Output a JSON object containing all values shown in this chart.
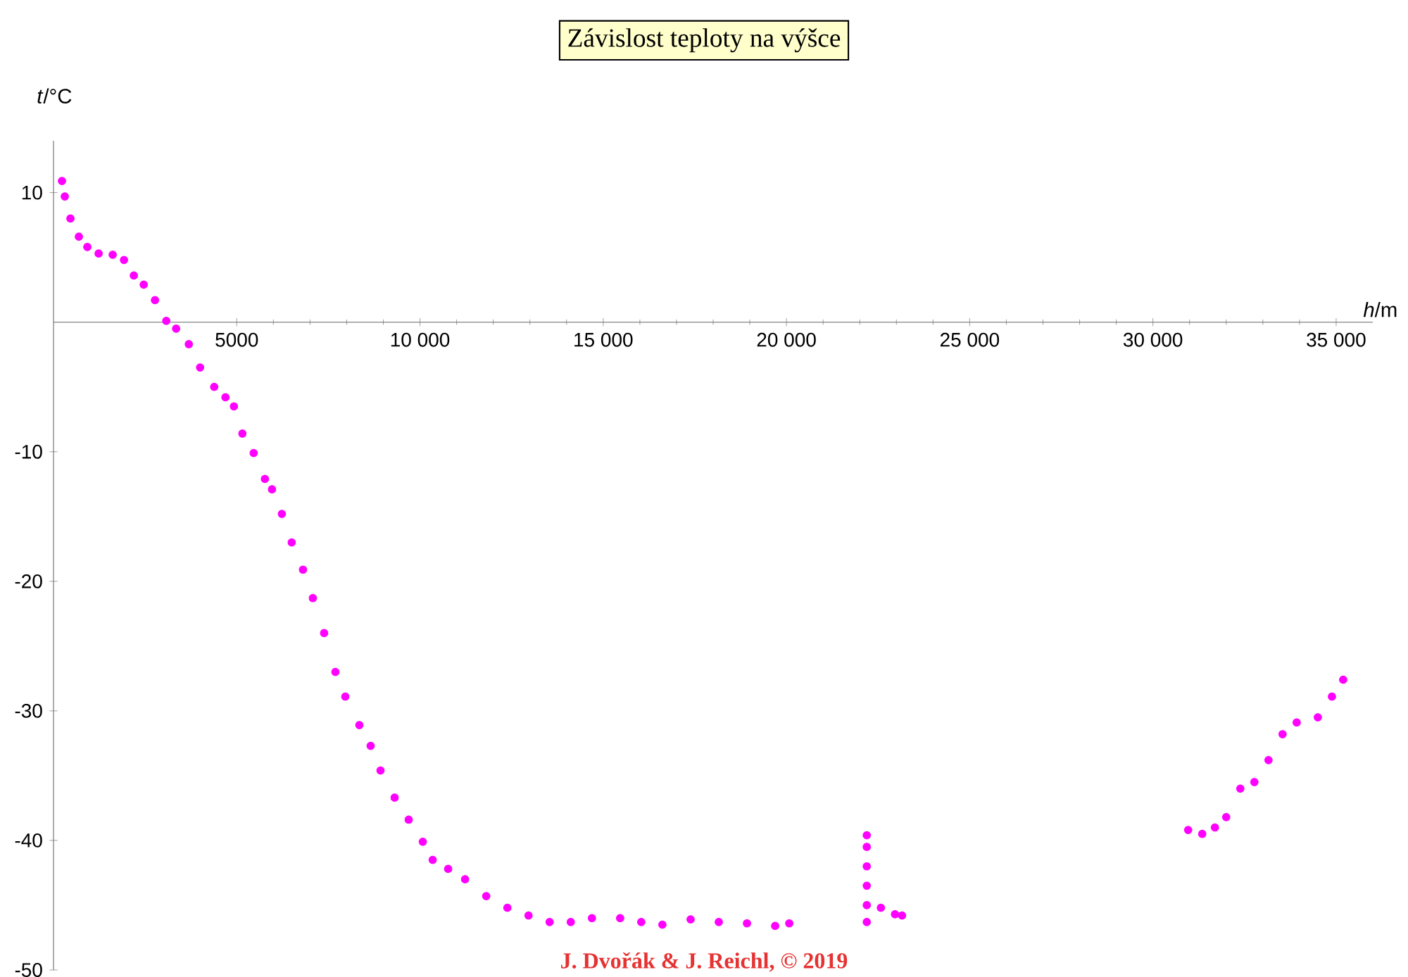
{
  "chart_data": {
    "type": "scatter",
    "title": "Závislost teploty na výšce",
    "xlabel": "*h*/m",
    "ylabel": "*t*/°C",
    "annotations": [
      "J. Dvořák & J. Reichl, © 2019"
    ],
    "x": [
      231,
      308,
      462,
      692,
      923,
      1231,
      1615,
      1923,
      2192,
      2462,
      2769,
      3077,
      3346,
      3692,
      4000,
      4385,
      4692,
      4923,
      5154,
      5462,
      5769,
      5962,
      6231,
      6500,
      6808,
      7077,
      7385,
      7692,
      7962,
      8346,
      8654,
      8923,
      9308,
      9692,
      10077,
      10346,
      10769,
      11231,
      11808,
      12385,
      12962,
      13538,
      14115,
      14692,
      15462,
      16038,
      16615,
      17385,
      18154,
      18923,
      19692,
      20077,
      22192,
      22192,
      22192,
      22192,
      22192,
      22192,
      22577,
      22962,
      23154,
      30962,
      31346,
      31692,
      32000,
      32385,
      32769,
      33154,
      33538,
      33923,
      34500,
      34885,
      35192
    ],
    "series": [
      {
        "color": "#ff00ff",
        "values": [
          10.9,
          9.7,
          8.0,
          6.6,
          5.8,
          5.3,
          5.2,
          4.8,
          3.6,
          2.9,
          1.7,
          0.1,
          -0.5,
          -1.7,
          -3.5,
          -5.0,
          -5.8,
          -6.5,
          -8.6,
          -10.1,
          -12.1,
          -12.9,
          -14.8,
          -17.0,
          -19.1,
          -21.3,
          -24.0,
          -27.0,
          -28.9,
          -31.1,
          -32.7,
          -34.6,
          -36.7,
          -38.4,
          -40.1,
          -41.5,
          -42.2,
          -43.0,
          -44.3,
          -45.2,
          -45.8,
          -46.3,
          -46.3,
          -46.0,
          -46.0,
          -46.3,
          -46.5,
          -46.1,
          -46.3,
          -46.4,
          -46.6,
          -46.4,
          -46.3,
          -45,
          -43.5,
          -42,
          -40.5,
          -39.6,
          -45.2,
          -45.7,
          -45.8,
          -39.2,
          -39.5,
          -39.0,
          -38.2,
          -36.0,
          -35.5,
          -33.8,
          -31.8,
          -30.9,
          -30.5,
          -28.9,
          -27.6
        ]
      }
    ],
    "xlim": [
      0,
      36000
    ],
    "ylim": [
      -50,
      14
    ],
    "xticks": [
      5000,
      {
        "value": 10000,
        "label": "10 000"
      },
      {
        "value": 15000,
        "label": "15 000"
      },
      {
        "value": 20000,
        "label": "20 000"
      },
      {
        "value": 25000,
        "label": "25 000"
      },
      {
        "value": 30000,
        "label": "30 000"
      },
      {
        "value": 35000,
        "label": "35 000"
      }
    ],
    "yticks": [
      10,
      -10,
      -20,
      -30,
      -40,
      -50
    ],
    "marker": "circle"
  }
}
